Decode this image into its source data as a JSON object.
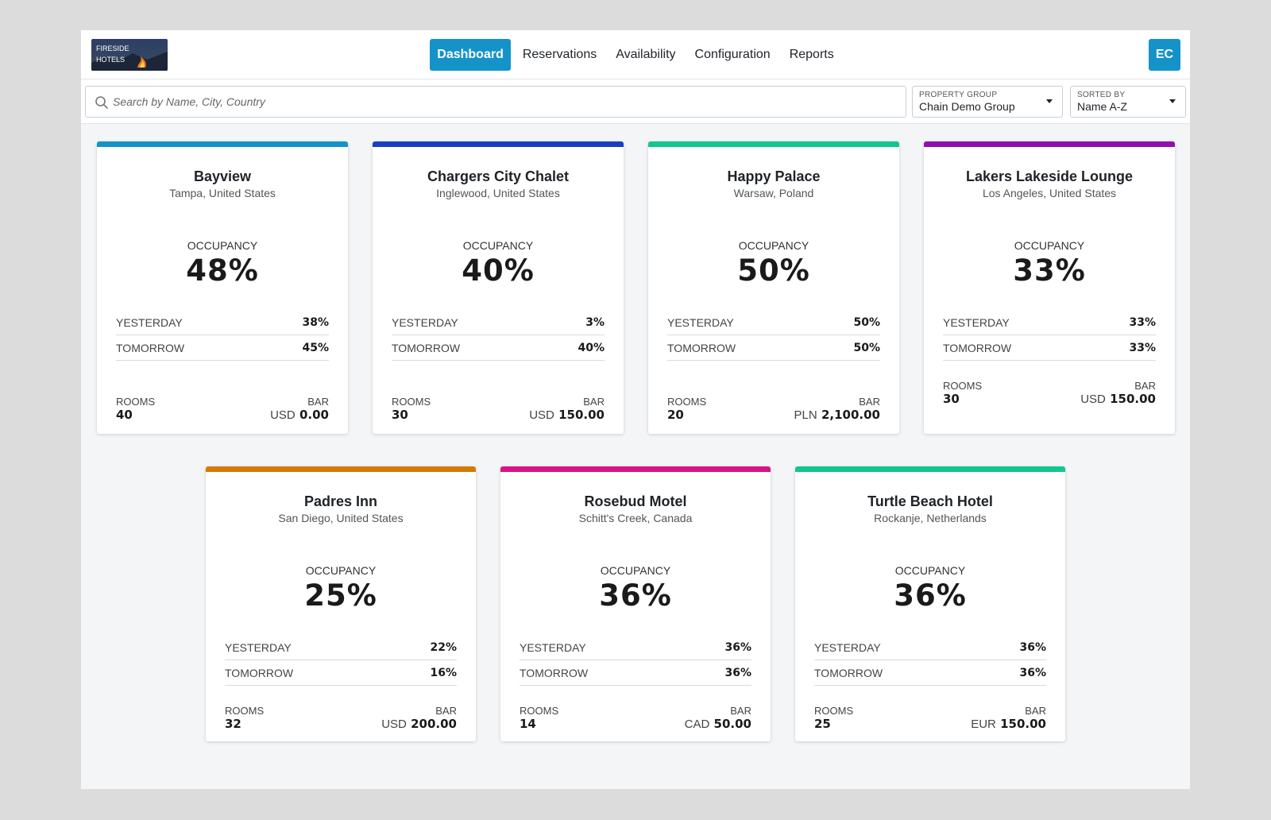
{
  "brand": {
    "logo_line1": "FIRESIDE",
    "logo_line2": "HOTELS"
  },
  "nav": [
    {
      "label": "Dashboard",
      "active": true
    },
    {
      "label": "Reservations"
    },
    {
      "label": "Availability"
    },
    {
      "label": "Configuration"
    },
    {
      "label": "Reports"
    }
  ],
  "user": {
    "initials": "EC"
  },
  "search": {
    "placeholder": "Search by Name, City, Country",
    "value": ""
  },
  "filters": {
    "property_group": {
      "label": "PROPERTY GROUP",
      "value": "Chain Demo Group"
    },
    "sorted_by": {
      "label": "SORTED BY",
      "value": "Name A-Z"
    }
  },
  "labels": {
    "occupancy": "OCCUPANCY",
    "yesterday": "YESTERDAY",
    "tomorrow": "TOMORROW",
    "rooms": "ROOMS",
    "bar": "BAR"
  },
  "colors": {
    "accent": "#1593c9"
  },
  "properties": [
    {
      "name": "Bayview",
      "location": "Tampa, United States",
      "occupancy": "48%",
      "yesterday": "38%",
      "tomorrow": "45%",
      "rooms": "40",
      "bar_currency": "USD",
      "bar_amount": "0.00",
      "color": "#1593c9"
    },
    {
      "name": "Chargers City Chalet",
      "location": "Inglewood, United States",
      "occupancy": "40%",
      "yesterday": "3%",
      "tomorrow": "40%",
      "rooms": "30",
      "bar_currency": "USD",
      "bar_amount": "150.00",
      "color": "#1a3fc4"
    },
    {
      "name": "Happy Palace",
      "location": "Warsaw, Poland",
      "occupancy": "50%",
      "yesterday": "50%",
      "tomorrow": "50%",
      "rooms": "20",
      "bar_currency": "PLN",
      "bar_amount": "2,100.00",
      "color": "#12c690"
    },
    {
      "name": "Lakers Lakeside Lounge",
      "location": "Los Angeles, United States",
      "occupancy": "33%",
      "yesterday": "33%",
      "tomorrow": "33%",
      "rooms": "30",
      "bar_currency": "USD",
      "bar_amount": "150.00",
      "color": "#8e0fb3"
    },
    {
      "name": "Padres Inn",
      "location": "San Diego, United States",
      "occupancy": "25%",
      "yesterday": "22%",
      "tomorrow": "16%",
      "rooms": "32",
      "bar_currency": "USD",
      "bar_amount": "200.00",
      "color": "#d47a0a"
    },
    {
      "name": "Rosebud Motel",
      "location": "Schitt's Creek, Canada",
      "occupancy": "36%",
      "yesterday": "36%",
      "tomorrow": "36%",
      "rooms": "14",
      "bar_currency": "CAD",
      "bar_amount": "50.00",
      "color": "#d6138a"
    },
    {
      "name": "Turtle Beach Hotel",
      "location": "Rockanje, Netherlands",
      "occupancy": "36%",
      "yesterday": "36%",
      "tomorrow": "36%",
      "rooms": "25",
      "bar_currency": "EUR",
      "bar_amount": "150.00",
      "color": "#12c690"
    }
  ]
}
